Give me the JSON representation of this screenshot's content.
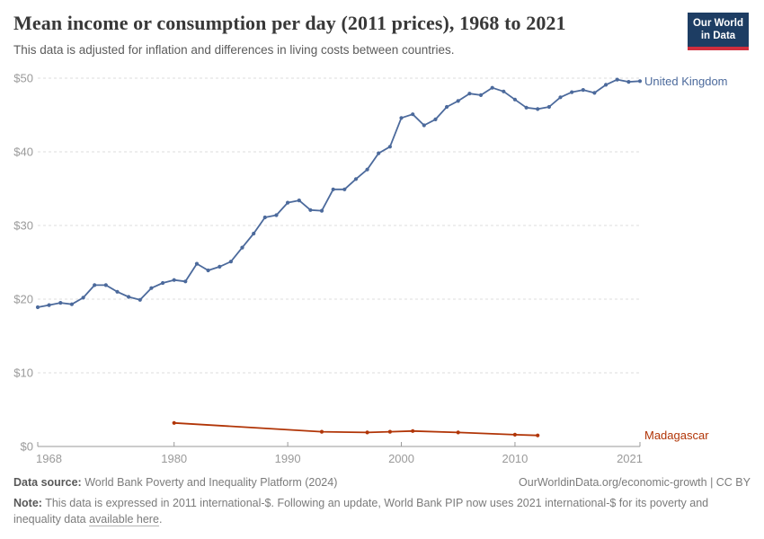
{
  "header": {
    "title": "Mean income or consumption per day (2011 prices), 1968 to 2021",
    "subtitle": "This data is adjusted for inflation and differences in living costs between countries.",
    "logo": {
      "line1": "Our World",
      "line2": "in Data",
      "bg_color": "#1d3d63",
      "accent_color": "#d02e3d"
    }
  },
  "chart_data": {
    "type": "line",
    "title": "Mean income or consumption per day (1968 to 2021)",
    "xlabel": "",
    "ylabel": "",
    "xlim": [
      1968,
      2021
    ],
    "ylim": [
      0,
      50
    ],
    "grid": "horizontal dashed gridlines on",
    "legend_position": "labels at right edge of lines",
    "x_ticks": {
      "years": [
        1968,
        1980,
        1990,
        2000,
        2010,
        2021
      ],
      "labels": [
        "1968",
        "1980",
        "1990",
        "2000",
        "2010",
        "2021"
      ]
    },
    "y_ticks": {
      "values": [
        0,
        10,
        20,
        30,
        40,
        50
      ],
      "labels": [
        "$0",
        "$10",
        "$20",
        "$30",
        "$40",
        "$50"
      ]
    },
    "series": [
      {
        "name": "United Kingdom",
        "color": "#4c6a9c",
        "x": [
          1968,
          1969,
          1970,
          1971,
          1972,
          1973,
          1974,
          1975,
          1976,
          1977,
          1978,
          1979,
          1980,
          1981,
          1982,
          1983,
          1984,
          1985,
          1986,
          1987,
          1988,
          1989,
          1990,
          1991,
          1992,
          1993,
          1994,
          1995,
          1996,
          1997,
          1998,
          1999,
          2000,
          2001,
          2002,
          2003,
          2004,
          2005,
          2006,
          2007,
          2008,
          2009,
          2010,
          2011,
          2012,
          2013,
          2014,
          2015,
          2016,
          2017,
          2018,
          2019,
          2020,
          2021
        ],
        "values": [
          18.9,
          19.2,
          19.5,
          19.3,
          20.2,
          21.9,
          21.9,
          21.0,
          20.3,
          19.9,
          21.5,
          22.2,
          22.6,
          22.4,
          24.8,
          23.9,
          24.4,
          25.1,
          27.0,
          28.9,
          31.1,
          31.4,
          33.1,
          33.4,
          32.1,
          32.0,
          34.9,
          34.9,
          36.3,
          37.6,
          39.8,
          40.7,
          44.6,
          45.1,
          43.6,
          44.4,
          46.1,
          46.9,
          47.9,
          47.7,
          48.7,
          48.2,
          47.1,
          46.0,
          45.8,
          46.1,
          47.4,
          48.1,
          48.4,
          48.0,
          49.1,
          49.8,
          49.5,
          49.6
        ]
      },
      {
        "name": "Madagascar",
        "color": "#b13507",
        "x": [
          1980,
          1993,
          1997,
          1999,
          2001,
          2005,
          2010,
          2012
        ],
        "values": [
          3.2,
          2.0,
          1.9,
          2.0,
          2.1,
          1.9,
          1.6,
          1.5
        ]
      }
    ],
    "axis_color": "#9a9a9a",
    "gridline_color": "#dedede"
  },
  "footer": {
    "data_source_label": "Data source:",
    "data_source_text": "World Bank Poverty and Inequality Platform (2024)",
    "attribution": "OurWorldinData.org/economic-growth | CC BY",
    "note_label": "Note:",
    "note_text": "This data is expressed in 2011 international-$. Following an update, World Bank PIP now uses 2021 international-$ for its poverty and inequality data ",
    "note_link_text": "available here",
    "note_suffix": "."
  }
}
